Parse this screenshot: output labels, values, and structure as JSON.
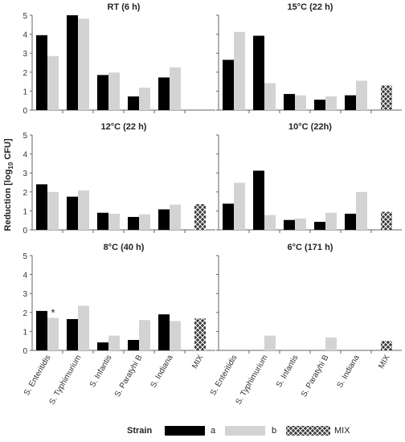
{
  "figure": {
    "ylabel_main": "Reduction [log",
    "ylabel_sub": "10",
    "ylabel_tail": " CFU]",
    "categories": [
      "S. Enteritidis",
      "S. Typhimurium",
      "S. Infantis",
      "S. Paratyhi B",
      "S. Indiana",
      "MIX"
    ],
    "colors": {
      "a": "#000000",
      "b": "#d3d3d3",
      "mix_bg": "#3a3a3a",
      "mix_fg": "#ffffff",
      "axis": "#666666"
    }
  },
  "legend": {
    "title": "Strain",
    "items": [
      {
        "label": "a",
        "color": "#000000"
      },
      {
        "label": "b",
        "color": "#d3d3d3"
      },
      {
        "label": "MIX",
        "pattern": "crosshatch"
      }
    ]
  },
  "chart_data": [
    {
      "type": "bar",
      "title": "RT (6 h)",
      "ylim": [
        0,
        5
      ],
      "yticks": [
        "0",
        "1",
        "2",
        "3",
        "4",
        "5"
      ],
      "categories": [
        "S. Enteritidis",
        "S. Typhimurium",
        "S. Infantis",
        "S. Paratyhi B",
        "S. Indiana",
        "MIX"
      ],
      "series": [
        {
          "name": "a",
          "values": [
            3.95,
            5.0,
            1.85,
            0.72,
            1.72,
            null
          ]
        },
        {
          "name": "b",
          "values": [
            2.85,
            4.82,
            1.98,
            1.18,
            2.25,
            null
          ]
        },
        {
          "name": "MIX",
          "values": [
            null,
            null,
            null,
            null,
            null,
            null
          ]
        }
      ],
      "annotations": []
    },
    {
      "type": "bar",
      "title": "15°C (22 h)",
      "ylim": [
        0,
        5
      ],
      "yticks": [],
      "categories": [
        "S. Enteritidis",
        "S. Typhimurium",
        "S. Infantis",
        "S. Paratyhi B",
        "S. Indiana",
        "MIX"
      ],
      "series": [
        {
          "name": "a",
          "values": [
            2.65,
            3.92,
            0.85,
            0.55,
            0.78,
            null
          ]
        },
        {
          "name": "b",
          "values": [
            4.12,
            1.42,
            0.78,
            0.72,
            1.55,
            null
          ]
        },
        {
          "name": "MIX",
          "values": [
            null,
            null,
            null,
            null,
            null,
            1.3
          ]
        }
      ],
      "annotations": []
    },
    {
      "type": "bar",
      "title": "12°C (22 h)",
      "ylim": [
        0,
        5
      ],
      "yticks": [
        "0",
        "1",
        "2",
        "3",
        "4",
        "5"
      ],
      "categories": [
        "S. Enteritidis",
        "S. Typhimurium",
        "S. Infantis",
        "S. Paratyhi B",
        "S. Indiana",
        "MIX"
      ],
      "series": [
        {
          "name": "a",
          "values": [
            2.4,
            1.75,
            0.9,
            0.68,
            1.08,
            null
          ]
        },
        {
          "name": "b",
          "values": [
            2.0,
            2.08,
            0.85,
            0.82,
            1.33,
            null
          ]
        },
        {
          "name": "MIX",
          "values": [
            null,
            null,
            null,
            null,
            null,
            1.35
          ]
        }
      ],
      "annotations": []
    },
    {
      "type": "bar",
      "title": "10°C (22h)",
      "ylim": [
        0,
        5
      ],
      "yticks": [],
      "categories": [
        "S. Enteritidis",
        "S. Typhimurium",
        "S. Infantis",
        "S. Paratyhi B",
        "S. Indiana",
        "MIX"
      ],
      "series": [
        {
          "name": "a",
          "values": [
            1.38,
            3.12,
            0.52,
            0.42,
            0.85,
            null
          ]
        },
        {
          "name": "b",
          "values": [
            2.48,
            0.78,
            0.6,
            0.9,
            2.0,
            null
          ]
        },
        {
          "name": "MIX",
          "values": [
            null,
            null,
            null,
            null,
            null,
            0.95
          ]
        }
      ],
      "annotations": []
    },
    {
      "type": "bar",
      "title": "8°C (40 h)",
      "ylim": [
        0,
        5
      ],
      "yticks": [
        "0",
        "1",
        "2",
        "3",
        "4",
        "5"
      ],
      "categories": [
        "S. Enteritidis",
        "S. Typhimurium",
        "S. Infantis",
        "S. Paratyhi B",
        "S. Indiana",
        "MIX"
      ],
      "series": [
        {
          "name": "a",
          "values": [
            2.08,
            1.65,
            0.42,
            0.55,
            1.9,
            null
          ]
        },
        {
          "name": "b",
          "values": [
            1.72,
            2.35,
            0.78,
            1.6,
            1.55,
            null
          ]
        },
        {
          "name": "MIX",
          "values": [
            null,
            null,
            null,
            null,
            null,
            1.68
          ]
        }
      ],
      "annotations": [
        {
          "text": "*",
          "category": "S. Enteritidis",
          "series": "b"
        }
      ]
    },
    {
      "type": "bar",
      "title": "6°C (171 h)",
      "ylim": [
        0,
        5
      ],
      "yticks": [],
      "categories": [
        "S. Enteritidis",
        "S. Typhimurium",
        "S. Infantis",
        "S. Paratyhi B",
        "S. Indiana",
        "MIX"
      ],
      "series": [
        {
          "name": "a",
          "values": [
            0,
            0,
            0,
            0,
            0,
            null
          ]
        },
        {
          "name": "b",
          "values": [
            0,
            0.78,
            0,
            0.68,
            0,
            null
          ]
        },
        {
          "name": "MIX",
          "values": [
            null,
            null,
            null,
            null,
            null,
            0.5
          ]
        }
      ],
      "annotations": []
    }
  ]
}
